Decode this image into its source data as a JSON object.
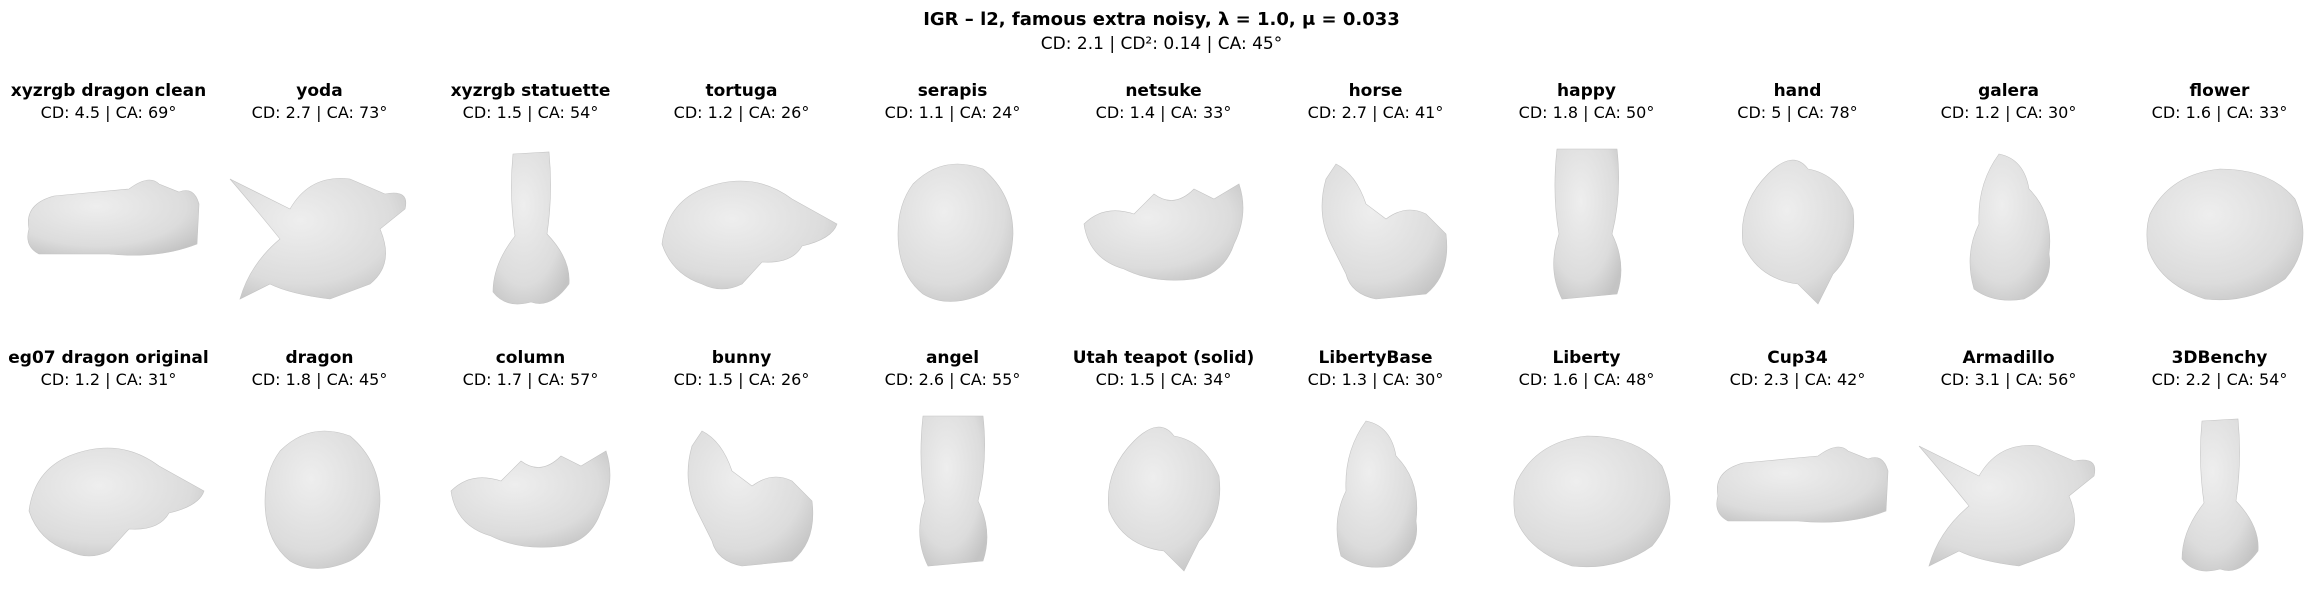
{
  "header": {
    "title": "IGR – l2,  famous extra noisy,  λ  =  1.0,  μ  =  0.033",
    "stats": "CD: 2.1 | CD²: 0.14 | CA: 45°"
  },
  "colors": {
    "mesh_fill": "#dcdcdc",
    "mesh_shade": "#c4c4c4",
    "mesh_highlight": "#eeeeee",
    "background": "#ffffff"
  },
  "models": [
    {
      "name": "xyzrgb dragon clean",
      "stats": "CD: 4.5 | CA: 69°",
      "icon": "dragon-head-mesh-icon"
    },
    {
      "name": "yoda",
      "stats": "CD: 2.7 | CA: 73°",
      "icon": "yoda-mesh-icon"
    },
    {
      "name": "xyzrgb statuette",
      "stats": "CD: 1.5 | CA: 54°",
      "icon": "statuette-mesh-icon"
    },
    {
      "name": "tortuga",
      "stats": "CD: 1.2 | CA: 26°",
      "icon": "tortuga-mesh-icon"
    },
    {
      "name": "serapis",
      "stats": "CD: 1.1 | CA: 24°",
      "icon": "serapis-bust-mesh-icon"
    },
    {
      "name": "netsuke",
      "stats": "CD: 1.4 | CA: 33°",
      "icon": "netsuke-mesh-icon"
    },
    {
      "name": "horse",
      "stats": "CD: 2.7 | CA: 41°",
      "icon": "horse-mesh-icon"
    },
    {
      "name": "happy",
      "stats": "CD: 1.8 | CA: 50°",
      "icon": "happy-buddha-mesh-icon"
    },
    {
      "name": "hand",
      "stats": "CD: 5 | CA: 78°",
      "icon": "hand-mesh-icon"
    },
    {
      "name": "galera",
      "stats": "CD: 1.2 | CA: 30°",
      "icon": "galera-mesh-icon"
    },
    {
      "name": "flower",
      "stats": "CD: 1.6 | CA: 33°",
      "icon": "flower-mesh-icon"
    },
    {
      "name": "eg07 dragon original",
      "stats": "CD: 1.2 | CA: 31°",
      "icon": "dragon-original-mesh-icon"
    },
    {
      "name": "dragon",
      "stats": "CD: 1.8 | CA: 45°",
      "icon": "dragon-mesh-icon"
    },
    {
      "name": "column",
      "stats": "CD: 1.7 | CA: 57°",
      "icon": "column-mesh-icon"
    },
    {
      "name": "bunny",
      "stats": "CD: 1.5 | CA: 26°",
      "icon": "bunny-mesh-icon"
    },
    {
      "name": "angel",
      "stats": "CD: 2.6 | CA: 55°",
      "icon": "angel-mesh-icon"
    },
    {
      "name": "Utah teapot (solid)",
      "stats": "CD: 1.5 | CA: 34°",
      "icon": "teapot-mesh-icon"
    },
    {
      "name": "LibertyBase",
      "stats": "CD: 1.3 | CA: 30°",
      "icon": "liberty-base-mesh-icon"
    },
    {
      "name": "Liberty",
      "stats": "CD: 1.6 | CA: 48°",
      "icon": "liberty-statue-mesh-icon"
    },
    {
      "name": "Cup34",
      "stats": "CD: 2.3 | CA: 42°",
      "icon": "cup-mesh-icon"
    },
    {
      "name": "Armadillo",
      "stats": "CD: 3.1 | CA: 56°",
      "icon": "armadillo-mesh-icon"
    },
    {
      "name": "3DBenchy",
      "stats": "CD: 2.2 | CA: 54°",
      "icon": "benchy-mesh-icon"
    }
  ]
}
